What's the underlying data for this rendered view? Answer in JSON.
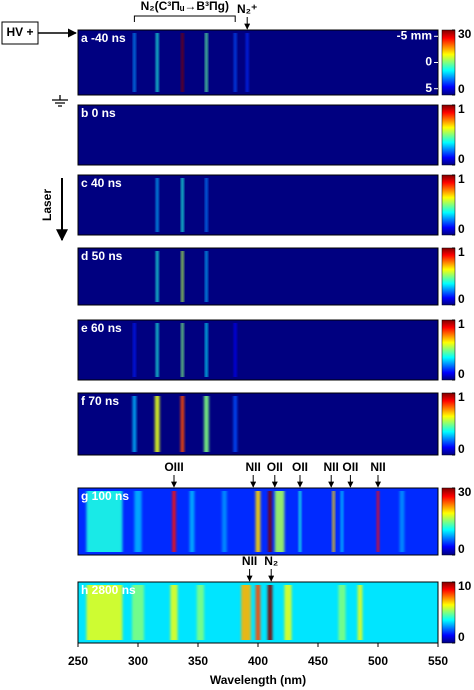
{
  "chart_data": {
    "type": "spectral-image",
    "xlabel": "Wavelength (nm)",
    "xlim": [
      250,
      550
    ],
    "xticks": [
      250,
      300,
      350,
      400,
      450,
      500,
      550
    ],
    "source_label": "HV +",
    "laser_label": "Laser",
    "bracket": {
      "label": "N₂(C³Πᵤ→B³Πg)",
      "x": [
        297,
        381
      ]
    },
    "panels": [
      {
        "label": "a -40 ns",
        "cticks": [
          0,
          30
        ],
        "background": 0,
        "ylim": [
          -6.2,
          6.2
        ],
        "yticks": [
          {
            "value": -5,
            "label": "-5 mm"
          },
          0,
          5
        ],
        "annotations": [
          {
            "label": "N₂⁺",
            "x": 391
          }
        ],
        "lines": {
          "x": [
            297,
            316,
            337,
            357,
            381,
            391
          ],
          "values": [
            8,
            12,
            30,
            14,
            6,
            5
          ],
          "widths": [
            2,
            2,
            2,
            2,
            2,
            2
          ]
        }
      },
      {
        "label": "b 0 ns",
        "cticks": [
          0,
          1
        ],
        "background": 0,
        "lines": {
          "x": [],
          "values": [],
          "widths": []
        }
      },
      {
        "label": "c 40 ns",
        "cticks": [
          0,
          1
        ],
        "background": 0,
        "lines": {
          "x": [
            316,
            337,
            357
          ],
          "values": [
            0.3,
            0.4,
            0.25
          ],
          "widths": [
            2,
            2,
            2
          ]
        }
      },
      {
        "label": "d 50 ns",
        "cticks": [
          0,
          1
        ],
        "background": 0,
        "lines": {
          "x": [
            316,
            337,
            357
          ],
          "values": [
            0.4,
            0.55,
            0.3
          ],
          "widths": [
            2,
            2,
            2
          ]
        }
      },
      {
        "label": "e 60 ns",
        "cticks": [
          0,
          1
        ],
        "background": 0,
        "lines": {
          "x": [
            297,
            316,
            337,
            357,
            381
          ],
          "values": [
            0.15,
            0.4,
            0.5,
            0.35,
            0.12
          ],
          "widths": [
            2,
            2,
            2,
            2,
            2
          ]
        }
      },
      {
        "label": "f 70 ns",
        "cticks": [
          0,
          1
        ],
        "background": 0,
        "lines": {
          "x": [
            297,
            316,
            337,
            357,
            381
          ],
          "values": [
            0.3,
            0.6,
            0.8,
            0.5,
            0.2
          ],
          "widths": [
            3,
            4,
            3,
            4,
            3
          ]
        }
      },
      {
        "label": "g 100 ns",
        "cticks": [
          0,
          30
        ],
        "background": 5,
        "annotations": [
          {
            "label": "OIII",
            "x": 330
          },
          {
            "label": "NII",
            "x": 396
          },
          {
            "label": "OII",
            "x": 414
          },
          {
            "label": "OII",
            "x": 435
          },
          {
            "label": "NII",
            "x": 461
          },
          {
            "label": "OII",
            "x": 477
          },
          {
            "label": "NII",
            "x": 500
          }
        ],
        "lines": {
          "x": [
            272,
            300,
            330,
            345,
            372,
            400,
            410,
            418,
            435,
            463,
            470,
            500,
            520
          ],
          "values": [
            12,
            9,
            26,
            9,
            8,
            20,
            30,
            16,
            12,
            20,
            10,
            26,
            8
          ],
          "widths": [
            30,
            6,
            3,
            4,
            4,
            4,
            3,
            8,
            2,
            2,
            2,
            2,
            4
          ]
        }
      },
      {
        "label": "h 2800 ns",
        "cticks": [
          0,
          10
        ],
        "background": 3.5,
        "annotations": [
          {
            "label": "NII",
            "x": 393
          },
          {
            "label": "N₂",
            "x": 411
          }
        ],
        "lines": {
          "x": [
            272,
            300,
            330,
            352,
            390,
            400,
            410,
            425,
            470,
            485
          ],
          "values": [
            6,
            5,
            6,
            5,
            7,
            8,
            10,
            6,
            5,
            6
          ],
          "widths": [
            30,
            10,
            6,
            6,
            8,
            4,
            4,
            6,
            6,
            4
          ]
        }
      }
    ]
  }
}
